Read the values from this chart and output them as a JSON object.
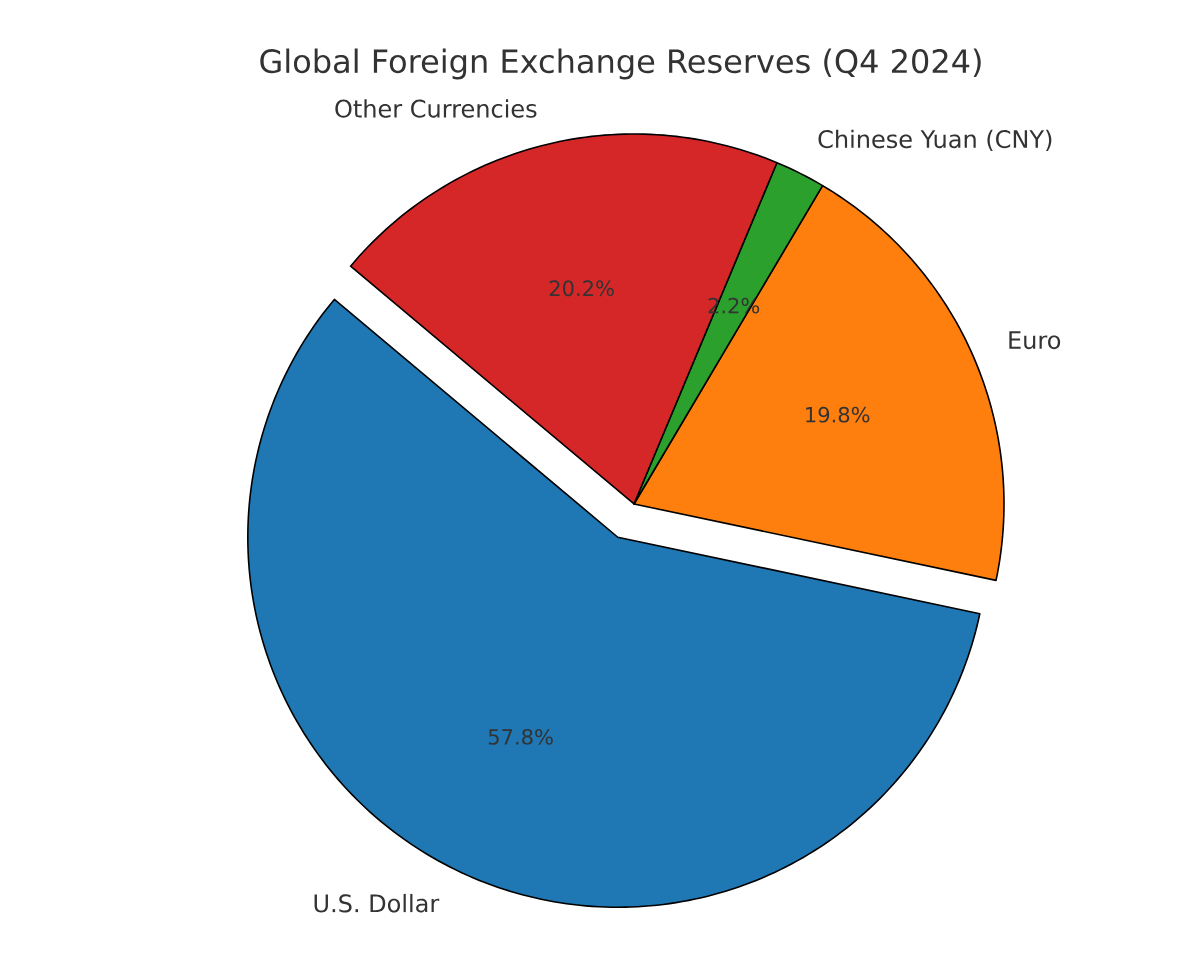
{
  "chart_data": {
    "type": "pie",
    "title": "Global Foreign Exchange Reserves (Q4 2024)",
    "categories": [
      "U.S. Dollar",
      "Euro",
      "Chinese Yuan (CNY)",
      "Other Currencies"
    ],
    "values": [
      57.8,
      19.8,
      2.2,
      20.2
    ],
    "colors": [
      "#1f77b4",
      "#ff7f0e",
      "#2ca02c",
      "#d62728"
    ],
    "value_labels": [
      "57.8%",
      "19.8%",
      "2.2%",
      "20.2%"
    ]
  }
}
